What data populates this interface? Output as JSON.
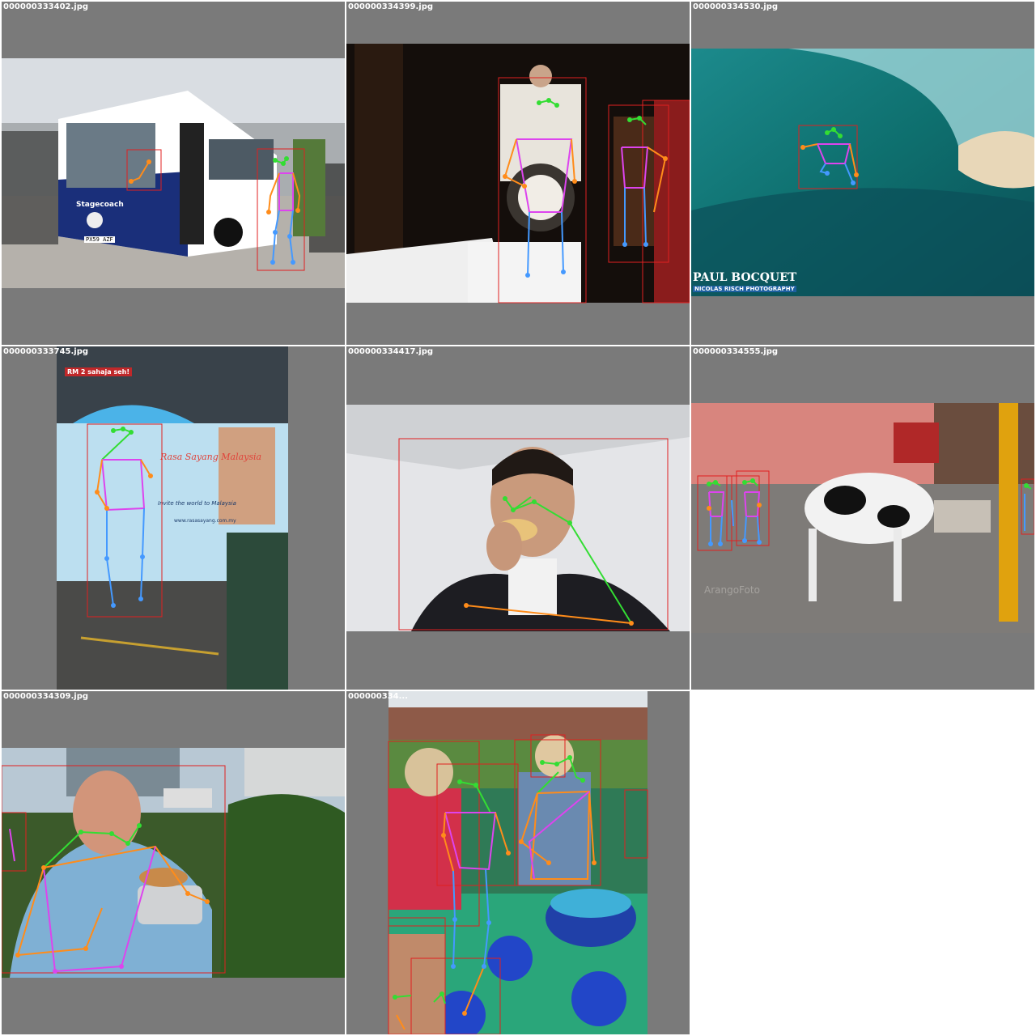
{
  "grid": {
    "tiles": [
      {
        "filename": "000000333402.jpg"
      },
      {
        "filename": "000000334399.jpg"
      },
      {
        "filename": "000000334530.jpg"
      },
      {
        "filename": "000000333745.jpg"
      },
      {
        "filename": "000000334417.jpg"
      },
      {
        "filename": "000000334555.jpg"
      },
      {
        "filename": "000000334309.jpg"
      },
      {
        "filename": "000000334..."
      }
    ]
  },
  "photo_text": {
    "bus_destination": "Stagecoach",
    "bus_plate": "PX59 AZF",
    "surf_credit_main": "PAUL BOCQUET",
    "surf_credit_sub": "NICOLAS RISCH PHOTOGRAPHY",
    "bus_ad_banner": "RM 2 sahaja seh!",
    "bus_ad_script": "Rasa Sayang Malaysia",
    "bus_ad_tagline": "Invite the world to Malaysia",
    "bus_ad_url": "www.rasasayang.com.my",
    "street_watermark": "ArangoFoto"
  },
  "annotation_colors": {
    "bbox": "#e02020",
    "head": "#33dd33",
    "left_limb": "#ff8c1a",
    "right_limb": "#4499ff",
    "torso": "#dd44ee"
  },
  "tile_background": "#7a7a7a"
}
